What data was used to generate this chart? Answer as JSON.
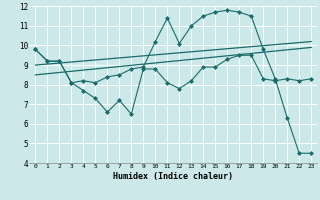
{
  "xlabel": "Humidex (Indice chaleur)",
  "bg_color": "#cce8e8",
  "grid_color": "#ffffff",
  "line_color": "#1a6b6b",
  "ylim": [
    4,
    12
  ],
  "xlim": [
    -0.5,
    23.5
  ],
  "yticks": [
    4,
    5,
    6,
    7,
    8,
    9,
    10,
    11,
    12
  ],
  "xticks": [
    0,
    1,
    2,
    3,
    4,
    5,
    6,
    7,
    8,
    9,
    10,
    11,
    12,
    13,
    14,
    15,
    16,
    17,
    18,
    19,
    20,
    21,
    22,
    23
  ],
  "series1_x": [
    0,
    1,
    2,
    3,
    4,
    5,
    6,
    7,
    8,
    9,
    10,
    11,
    12,
    13,
    14,
    15,
    16,
    17,
    18,
    19,
    20,
    21,
    22,
    23
  ],
  "series1_y": [
    9.8,
    9.2,
    9.2,
    8.1,
    7.7,
    7.3,
    6.6,
    7.2,
    6.5,
    8.8,
    8.8,
    8.1,
    7.8,
    8.2,
    8.9,
    8.9,
    9.3,
    9.5,
    9.5,
    8.3,
    8.2,
    8.3,
    8.2,
    8.3
  ],
  "series2_x": [
    0,
    1,
    2,
    3,
    4,
    5,
    6,
    7,
    8,
    9,
    10,
    11,
    12,
    13,
    14,
    15,
    16,
    17,
    18,
    19,
    20,
    21,
    22,
    23
  ],
  "series2_y": [
    9.8,
    9.2,
    9.2,
    8.1,
    8.2,
    8.1,
    8.4,
    8.5,
    8.8,
    8.9,
    10.2,
    11.4,
    10.1,
    11.0,
    11.5,
    11.7,
    11.8,
    11.7,
    11.5,
    9.8,
    8.3,
    6.3,
    4.5,
    4.5
  ],
  "trend1_x": [
    0,
    23
  ],
  "trend1_y": [
    8.5,
    9.9
  ],
  "trend2_x": [
    0,
    23
  ],
  "trend2_y": [
    9.0,
    10.2
  ]
}
